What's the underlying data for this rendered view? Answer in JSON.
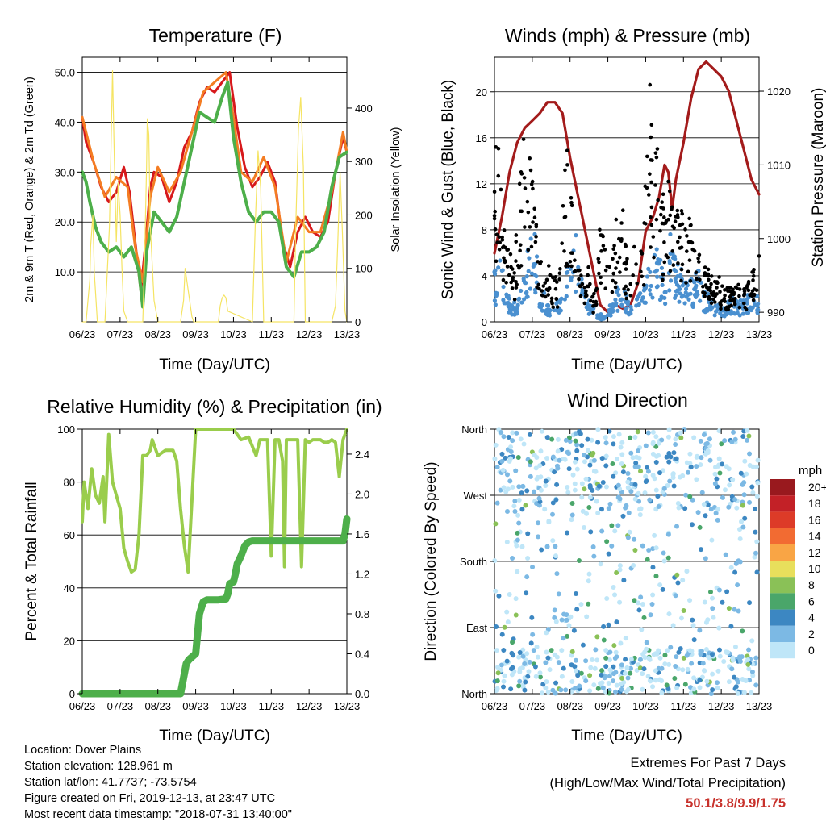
{
  "chart_data": [
    {
      "type": "line",
      "title": "Temperature (F)",
      "xlabel": "Time (Day/UTC)",
      "ylabel": "2m & 9m T (Red, Orange) & 2m Td (Green)",
      "y2label": "Solar Insolation (Yellow)",
      "x_ticks": [
        "06/23",
        "07/23",
        "08/23",
        "09/23",
        "10/23",
        "11/23",
        "12/23",
        "13/23"
      ],
      "y_ticks": [
        "10.0",
        "20.0",
        "30.0",
        "40.0",
        "50.0"
      ],
      "y2_ticks": [
        "0",
        "100",
        "200",
        "300",
        "400"
      ],
      "ylim": [
        0,
        53
      ],
      "y2lim": [
        0,
        495
      ],
      "grid": true,
      "series": [
        {
          "name": "2m T",
          "color": "#d7191c",
          "x": [
            6.0,
            6.1,
            6.3,
            6.5,
            6.7,
            6.9,
            7.1,
            7.25,
            7.4,
            7.55,
            7.7,
            7.8,
            7.9,
            8.1,
            8.3,
            8.5,
            8.7,
            8.9,
            9.1,
            9.3,
            9.5,
            9.7,
            9.9,
            10.1,
            10.3,
            10.5,
            10.7,
            10.9,
            11.1,
            11.3,
            11.5,
            11.7,
            11.9,
            12.1,
            12.3,
            12.5,
            12.7,
            12.9,
            13.0
          ],
          "values": [
            41,
            36,
            32,
            27,
            24,
            26,
            31,
            26,
            16,
            6,
            18,
            27,
            30,
            29,
            24,
            28,
            35,
            38,
            44,
            47,
            46,
            48,
            50,
            39,
            31,
            27,
            29,
            32,
            28,
            16,
            11,
            18,
            21,
            18,
            17,
            20,
            30,
            37,
            34
          ]
        },
        {
          "name": "9m T",
          "color": "#f47d23",
          "x": [
            6.0,
            6.3,
            6.6,
            6.9,
            7.2,
            7.4,
            7.6,
            7.8,
            8.0,
            8.3,
            8.6,
            8.9,
            9.2,
            9.5,
            9.8,
            10.0,
            10.2,
            10.5,
            10.8,
            11.1,
            11.4,
            11.7,
            12.0,
            12.3,
            12.6,
            12.9,
            13.0
          ],
          "values": [
            41,
            32,
            25,
            29,
            27,
            15,
            8,
            25,
            31,
            26,
            30,
            38,
            46,
            48,
            50,
            41,
            30,
            28,
            33,
            27,
            12,
            21,
            18,
            18,
            26,
            38,
            34
          ]
        },
        {
          "name": "2m Td",
          "color": "#4daf4a",
          "x": [
            6.0,
            6.1,
            6.2,
            6.35,
            6.5,
            6.7,
            6.9,
            7.1,
            7.3,
            7.5,
            7.6,
            7.7,
            7.9,
            8.1,
            8.3,
            8.5,
            8.7,
            8.9,
            9.1,
            9.3,
            9.5,
            9.7,
            9.85,
            10.0,
            10.2,
            10.4,
            10.6,
            10.8,
            11.0,
            11.2,
            11.4,
            11.6,
            11.8,
            12.0,
            12.2,
            12.4,
            12.6,
            12.8,
            13.0
          ],
          "values": [
            30,
            28,
            24,
            19,
            16,
            14,
            15,
            13,
            15,
            10,
            3,
            14,
            22,
            20,
            18,
            21,
            28,
            35,
            42,
            41,
            40,
            45,
            48,
            37,
            28,
            22,
            20,
            22,
            22,
            20,
            11,
            9,
            14,
            14,
            15,
            18,
            27,
            33,
            34
          ]
        },
        {
          "name": "Solar Insolation",
          "color": "#f5e463",
          "axis": "y2",
          "x": [
            6.0,
            6.1,
            6.2,
            6.22,
            6.28,
            6.32,
            6.4,
            6.6,
            6.72,
            6.8,
            6.85,
            6.9,
            6.95,
            7.0,
            7.05,
            7.1,
            7.2,
            7.6,
            7.65,
            7.7,
            7.72,
            7.76,
            7.8,
            7.9,
            8.0,
            8.6,
            8.68,
            8.72,
            8.8,
            8.9,
            8.95,
            9.6,
            9.65,
            9.7,
            9.75,
            9.8,
            9.85,
            10.5,
            10.58,
            10.65,
            10.72,
            10.8,
            11.6,
            11.65,
            11.72,
            11.78,
            11.85,
            11.9,
            12.6,
            12.7,
            12.76,
            12.82,
            12.88,
            12.95,
            13.0
          ],
          "values": [
            0,
            0,
            80,
            140,
            200,
            90,
            0,
            0,
            180,
            470,
            300,
            150,
            260,
            200,
            100,
            20,
            0,
            0,
            120,
            290,
            380,
            350,
            180,
            40,
            0,
            0,
            40,
            100,
            60,
            10,
            0,
            0,
            30,
            45,
            50,
            45,
            20,
            0,
            190,
            320,
            250,
            0,
            0,
            180,
            360,
            420,
            290,
            0,
            0,
            30,
            150,
            280,
            170,
            20,
            0
          ]
        }
      ]
    },
    {
      "type": "scatter",
      "title": "Winds (mph) & Pressure (mb)",
      "xlabel": "Time (Day/UTC)",
      "ylabel": "Sonic Wind & Gust (Blue, Black)",
      "y2label": "Station Pressure (Maroon)",
      "x_ticks": [
        "06/23",
        "07/23",
        "08/23",
        "09/23",
        "10/23",
        "11/23",
        "12/23",
        "13/23"
      ],
      "y_ticks": [
        "0",
        "4",
        "8",
        "12",
        "16",
        "20"
      ],
      "y2_ticks": [
        "990",
        "1000",
        "1010",
        "1020"
      ],
      "ylim": [
        0,
        23
      ],
      "y2lim": [
        988.7,
        1024.6
      ],
      "grid": true,
      "series": [
        {
          "name": "Station Pressure",
          "color": "#a31b1b",
          "kind": "line",
          "axis": "y2",
          "x": [
            6.0,
            6.2,
            6.4,
            6.6,
            6.8,
            7.0,
            7.2,
            7.4,
            7.6,
            7.8,
            8.0,
            8.2,
            8.4,
            8.6,
            8.8,
            9.0,
            9.2,
            9.4,
            9.6,
            9.8,
            10.0,
            10.2,
            10.35,
            10.5,
            10.6,
            10.7,
            10.8,
            11.0,
            11.2,
            11.4,
            11.6,
            11.8,
            12.0,
            12.2,
            12.4,
            12.6,
            12.8,
            13.0
          ],
          "values": [
            998,
            1003,
            1009,
            1013,
            1015,
            1016,
            1017,
            1018.5,
            1018.5,
            1017,
            1011,
            1006,
            1001,
            996,
            991,
            990,
            991,
            990.5,
            991,
            994,
            1001,
            1003,
            1005.5,
            1010,
            1009,
            1004,
            1008,
            1013,
            1019,
            1023,
            1024,
            1023,
            1022,
            1020,
            1016,
            1012,
            1008,
            1006
          ]
        },
        {
          "name": "Sonic Wind",
          "color": "#4a90d0",
          "kind": "points",
          "x": [
            6.0,
            6.15,
            6.3,
            6.45,
            6.6,
            6.75,
            6.9,
            7.05,
            7.2,
            7.35,
            7.5,
            7.65,
            7.8,
            7.95,
            8.1,
            8.25,
            8.4,
            8.55,
            8.7,
            8.85,
            9.0,
            9.15,
            9.3,
            9.45,
            9.6,
            9.75,
            9.9,
            10.05,
            10.2,
            10.35,
            10.5,
            10.65,
            10.8,
            10.95,
            11.1,
            11.25,
            11.4,
            11.55,
            11.7,
            11.85,
            12.0,
            12.15,
            12.3,
            12.45,
            12.6,
            12.75,
            12.9
          ],
          "values": [
            4,
            5,
            3,
            1.5,
            2,
            3,
            6,
            7.5,
            3,
            2,
            1,
            1.5,
            2,
            6,
            8,
            5,
            2,
            1.5,
            1,
            0.5,
            1,
            2,
            3,
            2.5,
            1.5,
            2,
            2.5,
            4,
            5,
            6,
            3,
            7,
            5,
            4,
            3,
            3.5,
            4,
            2.5,
            2,
            1.5,
            1,
            1.5,
            2,
            1.5,
            1.8,
            2.2,
            2
          ]
        },
        {
          "name": "Gust",
          "color": "#000000",
          "kind": "points",
          "x": [
            6.0,
            6.1,
            6.2,
            6.3,
            6.4,
            6.5,
            6.6,
            6.7,
            6.8,
            6.9,
            7.0,
            7.1,
            7.2,
            7.3,
            7.4,
            7.5,
            7.6,
            7.7,
            7.8,
            7.9,
            8.0,
            8.1,
            8.2,
            8.3,
            8.4,
            8.5,
            8.6,
            8.7,
            8.8,
            8.9,
            9.0,
            9.1,
            9.2,
            9.3,
            9.4,
            9.5,
            9.6,
            9.7,
            9.8,
            9.9,
            10.0,
            10.05,
            10.1,
            10.2,
            10.3,
            10.4,
            10.5,
            10.6,
            10.7,
            10.8,
            10.9,
            11.0,
            11.1,
            11.2,
            11.3,
            11.4,
            11.5,
            11.6,
            11.7,
            11.8,
            11.9,
            12.0,
            12.1,
            12.2,
            12.3,
            12.4,
            12.5,
            12.6,
            12.7,
            12.8,
            12.9
          ],
          "values": [
            12,
            16,
            9,
            7,
            6,
            4,
            8,
            13,
            17,
            15,
            11,
            9,
            5,
            4,
            6,
            3,
            4,
            3,
            9,
            13,
            14,
            8,
            6,
            4,
            3,
            5,
            2,
            3,
            8,
            6,
            4,
            5,
            8,
            7,
            9,
            5,
            4,
            6,
            8,
            7,
            11,
            21,
            20,
            15,
            14,
            11,
            9,
            12,
            10,
            9,
            8,
            9,
            10,
            8,
            6,
            7,
            5,
            4,
            4,
            3,
            4,
            3,
            2.5,
            3,
            2.5,
            3,
            3.5,
            2.5,
            3,
            3.5,
            5
          ]
        }
      ]
    },
    {
      "type": "line",
      "title": "Relative Humidity (%) & Precipitation (in)",
      "xlabel": "Time (Day/UTC)",
      "ylabel": "Percent & Total Rainfall",
      "x_ticks": [
        "06/23",
        "07/23",
        "08/23",
        "09/23",
        "10/23",
        "11/23",
        "12/23",
        "13/23"
      ],
      "y_ticks": [
        "0",
        "20",
        "40",
        "60",
        "80",
        "100"
      ],
      "y2_ticks": [
        "0.0",
        "0.4",
        "0.8",
        "1.2",
        "1.6",
        "2.0",
        "2.4"
      ],
      "ylim": [
        0,
        100
      ],
      "y2lim": [
        0,
        2.65
      ],
      "grid": true,
      "series": [
        {
          "name": "Relative Humidity",
          "color": "#9acd4c",
          "x": [
            6.0,
            6.05,
            6.15,
            6.25,
            6.35,
            6.45,
            6.55,
            6.6,
            6.7,
            6.8,
            6.9,
            7.0,
            7.1,
            7.2,
            7.3,
            7.4,
            7.5,
            7.6,
            7.7,
            7.8,
            7.85,
            8.0,
            8.2,
            8.4,
            8.5,
            8.6,
            8.7,
            8.8,
            9.0,
            9.5,
            10.0,
            10.2,
            10.4,
            10.6,
            10.7,
            10.8,
            10.9,
            11.0,
            11.1,
            11.2,
            11.3,
            11.35,
            11.4,
            11.5,
            11.6,
            11.7,
            11.8,
            11.9,
            12.0,
            12.1,
            12.2,
            12.3,
            12.4,
            12.5,
            12.6,
            12.7,
            12.8,
            12.9,
            13.0
          ],
          "values": [
            65,
            80,
            70,
            85,
            75,
            72,
            82,
            65,
            98,
            80,
            75,
            70,
            55,
            50,
            46,
            47,
            60,
            90,
            90,
            92,
            96,
            90,
            92,
            92,
            88,
            70,
            56,
            46,
            100,
            100,
            100,
            96,
            97,
            90,
            96,
            96,
            96,
            52,
            96,
            96,
            88,
            48,
            96,
            96,
            96,
            96,
            48,
            96,
            95,
            96,
            96,
            96,
            95,
            95,
            96,
            95,
            82,
            96,
            100
          ]
        },
        {
          "name": "Total Precipitation",
          "color": "#4daf4a",
          "axis": "y2",
          "x": [
            6.0,
            8.6,
            8.65,
            8.75,
            8.8,
            8.85,
            9.0,
            9.05,
            9.1,
            9.2,
            9.3,
            9.4,
            9.5,
            9.6,
            9.8,
            9.85,
            9.9,
            10.0,
            10.05,
            10.1,
            10.2,
            10.3,
            10.4,
            10.5,
            11.0,
            11.5,
            12.0,
            12.5,
            12.9,
            12.95,
            13.0
          ],
          "values": [
            0,
            0,
            0.1,
            0.3,
            0.33,
            0.35,
            0.4,
            0.6,
            0.8,
            0.92,
            0.94,
            0.94,
            0.94,
            0.94,
            0.95,
            1.0,
            1.1,
            1.12,
            1.2,
            1.3,
            1.38,
            1.48,
            1.52,
            1.53,
            1.53,
            1.53,
            1.53,
            1.53,
            1.53,
            1.6,
            1.75
          ]
        }
      ]
    },
    {
      "type": "scatter",
      "title": "Wind Direction",
      "xlabel": "Time (Day/UTC)",
      "ylabel": "Direction (Colored By Speed)",
      "x_ticks": [
        "06/23",
        "07/23",
        "08/23",
        "09/23",
        "10/23",
        "11/23",
        "12/23",
        "13/23"
      ],
      "y_ticks": [
        "North",
        "East",
        "South",
        "West",
        "North"
      ],
      "ylim": [
        0,
        360
      ],
      "grid": true,
      "colorbar": {
        "title": "mph",
        "labels": [
          "20+",
          "18",
          "16",
          "14",
          "12",
          "10",
          "8",
          "6",
          "4",
          "2",
          "0"
        ],
        "colors": [
          "#99191e",
          "#c32127",
          "#dd3b28",
          "#f26b32",
          "#f9a545",
          "#e8df5c",
          "#8ac157",
          "#4aa66a",
          "#3c87c2",
          "#7cb9e4",
          "#bfe6f8"
        ]
      }
    }
  ],
  "info": {
    "location": "Location: Dover Plains",
    "elevation": "Station elevation: 128.961 m",
    "latlon": "Station lat/lon: 41.7737; -73.5754",
    "created": "Figure created on Fri, 2019-12-13, at 23:47 UTC",
    "timestamp": "Most recent data timestamp: \"2018-07-31 13:40:00\""
  },
  "extremes": {
    "title": "Extremes For Past 7 Days",
    "subtitle": "(High/Low/Max Wind/Total Precipitation)",
    "values": "50.1/3.8/9.9/1.75"
  }
}
